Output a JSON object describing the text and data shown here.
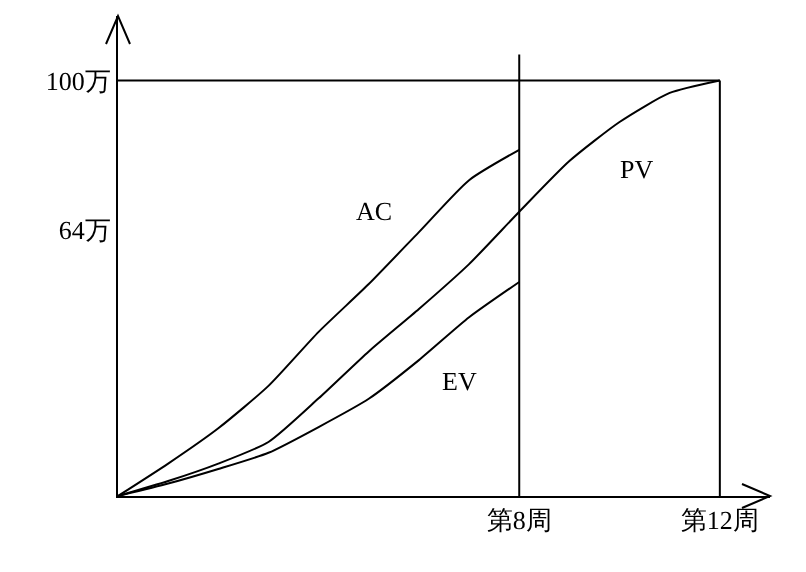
{
  "chart_data": {
    "type": "line",
    "ylim": [
      0,
      115.5
    ],
    "categories": [
      null,
      null,
      null,
      null,
      null,
      null,
      null,
      null,
      "第8周",
      null,
      null,
      null,
      "第12周",
      null
    ],
    "yticks": [
      {
        "value": 64,
        "label": "64万"
      },
      {
        "value": 100,
        "label": "100万"
      }
    ],
    "series": [
      {
        "name": "AC",
        "color": "#000000",
        "values": [
          0,
          7.8,
          16.3,
          26.5,
          39.5,
          51,
          63.5,
          76,
          83.3,
          null,
          null,
          null,
          null,
          null
        ]
      },
      {
        "name": "PV",
        "color": "#000000",
        "values": [
          0,
          3.6,
          7.8,
          13,
          23.5,
          34.8,
          45,
          55.8,
          68.4,
          80.6,
          90,
          97,
          100,
          null
        ]
      },
      {
        "name": "EV",
        "color": "#000000",
        "values": [
          0,
          3,
          6.5,
          10.4,
          16.6,
          23.4,
          32.7,
          43,
          51.5,
          null,
          null,
          null,
          null,
          null
        ]
      }
    ],
    "ref_lines": [
      {
        "axis": "x",
        "value": "第8周",
        "color": "#000000"
      },
      {
        "axis": "x",
        "value": "第12周",
        "color": "#000000"
      },
      {
        "axis": "y",
        "value": 100,
        "color": "#000000"
      }
    ],
    "grid": false,
    "legend": false,
    "marker": "none",
    "line_style": "solid"
  }
}
